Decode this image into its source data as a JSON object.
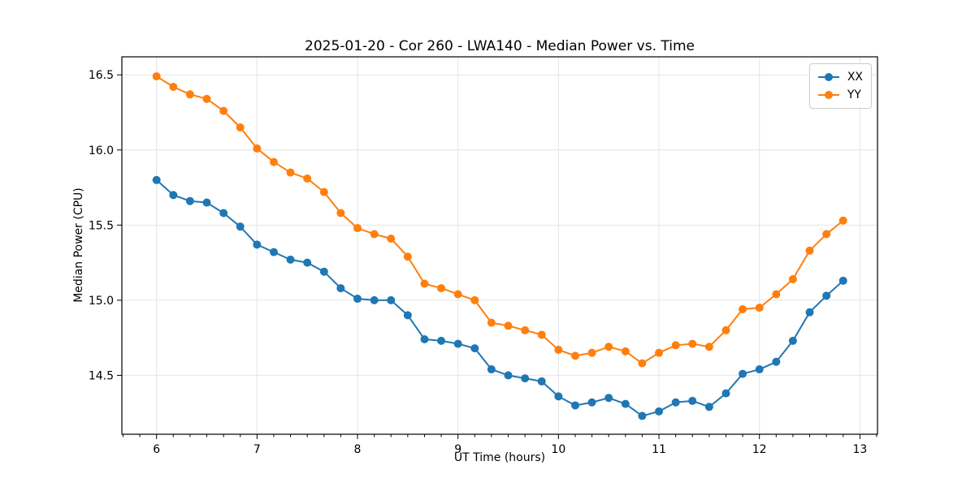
{
  "figure": {
    "background": "#ffffff"
  },
  "chart_data": {
    "type": "line",
    "title": "2025-01-20 - Cor 260 - LWA140 - Median Power vs. Time",
    "xlabel": "UT Time (hours)",
    "ylabel": "Median Power (CPU)",
    "xlim": [
      5.655,
      13.175
    ],
    "ylim": [
      14.108,
      16.62
    ],
    "xticks": [
      6,
      7,
      8,
      9,
      10,
      11,
      12,
      13
    ],
    "yticks": [
      14.5,
      15.0,
      15.5,
      16.0,
      16.5
    ],
    "x_minor_step": 0.1666667,
    "grid": true,
    "grid_color": "#e4e4e4",
    "axis_color": "#000000",
    "legend_position": "upper right",
    "x": [
      6.0,
      6.167,
      6.333,
      6.5,
      6.667,
      6.833,
      7.0,
      7.167,
      7.333,
      7.5,
      7.667,
      7.833,
      8.0,
      8.167,
      8.333,
      8.5,
      8.667,
      8.833,
      9.0,
      9.167,
      9.333,
      9.5,
      9.667,
      9.833,
      10.0,
      10.167,
      10.333,
      10.5,
      10.667,
      10.833,
      11.0,
      11.167,
      11.333,
      11.5,
      11.667,
      11.833,
      12.0,
      12.167,
      12.333,
      12.5,
      12.667,
      12.833
    ],
    "series": [
      {
        "name": "XX",
        "color": "#1f77b4",
        "marker": "circle",
        "values": [
          15.8,
          15.7,
          15.66,
          15.65,
          15.58,
          15.49,
          15.37,
          15.32,
          15.27,
          15.25,
          15.19,
          15.08,
          15.01,
          15.0,
          15.0,
          14.9,
          14.74,
          14.73,
          14.71,
          14.68,
          14.54,
          14.5,
          14.48,
          14.46,
          14.36,
          14.3,
          14.32,
          14.35,
          14.31,
          14.23,
          14.26,
          14.32,
          14.33,
          14.29,
          14.38,
          14.51,
          14.54,
          14.59,
          14.73,
          14.92,
          15.03,
          15.13
        ]
      },
      {
        "name": "YY",
        "color": "#ff7f0e",
        "marker": "circle",
        "values": [
          16.49,
          16.42,
          16.37,
          16.34,
          16.26,
          16.15,
          16.01,
          15.92,
          15.85,
          15.81,
          15.72,
          15.58,
          15.48,
          15.44,
          15.41,
          15.29,
          15.11,
          15.08,
          15.04,
          15.0,
          14.85,
          14.83,
          14.8,
          14.77,
          14.67,
          14.63,
          14.65,
          14.69,
          14.66,
          14.58,
          14.65,
          14.7,
          14.71,
          14.69,
          14.8,
          14.94,
          14.95,
          15.04,
          15.14,
          15.33,
          15.44,
          15.53
        ]
      }
    ]
  }
}
